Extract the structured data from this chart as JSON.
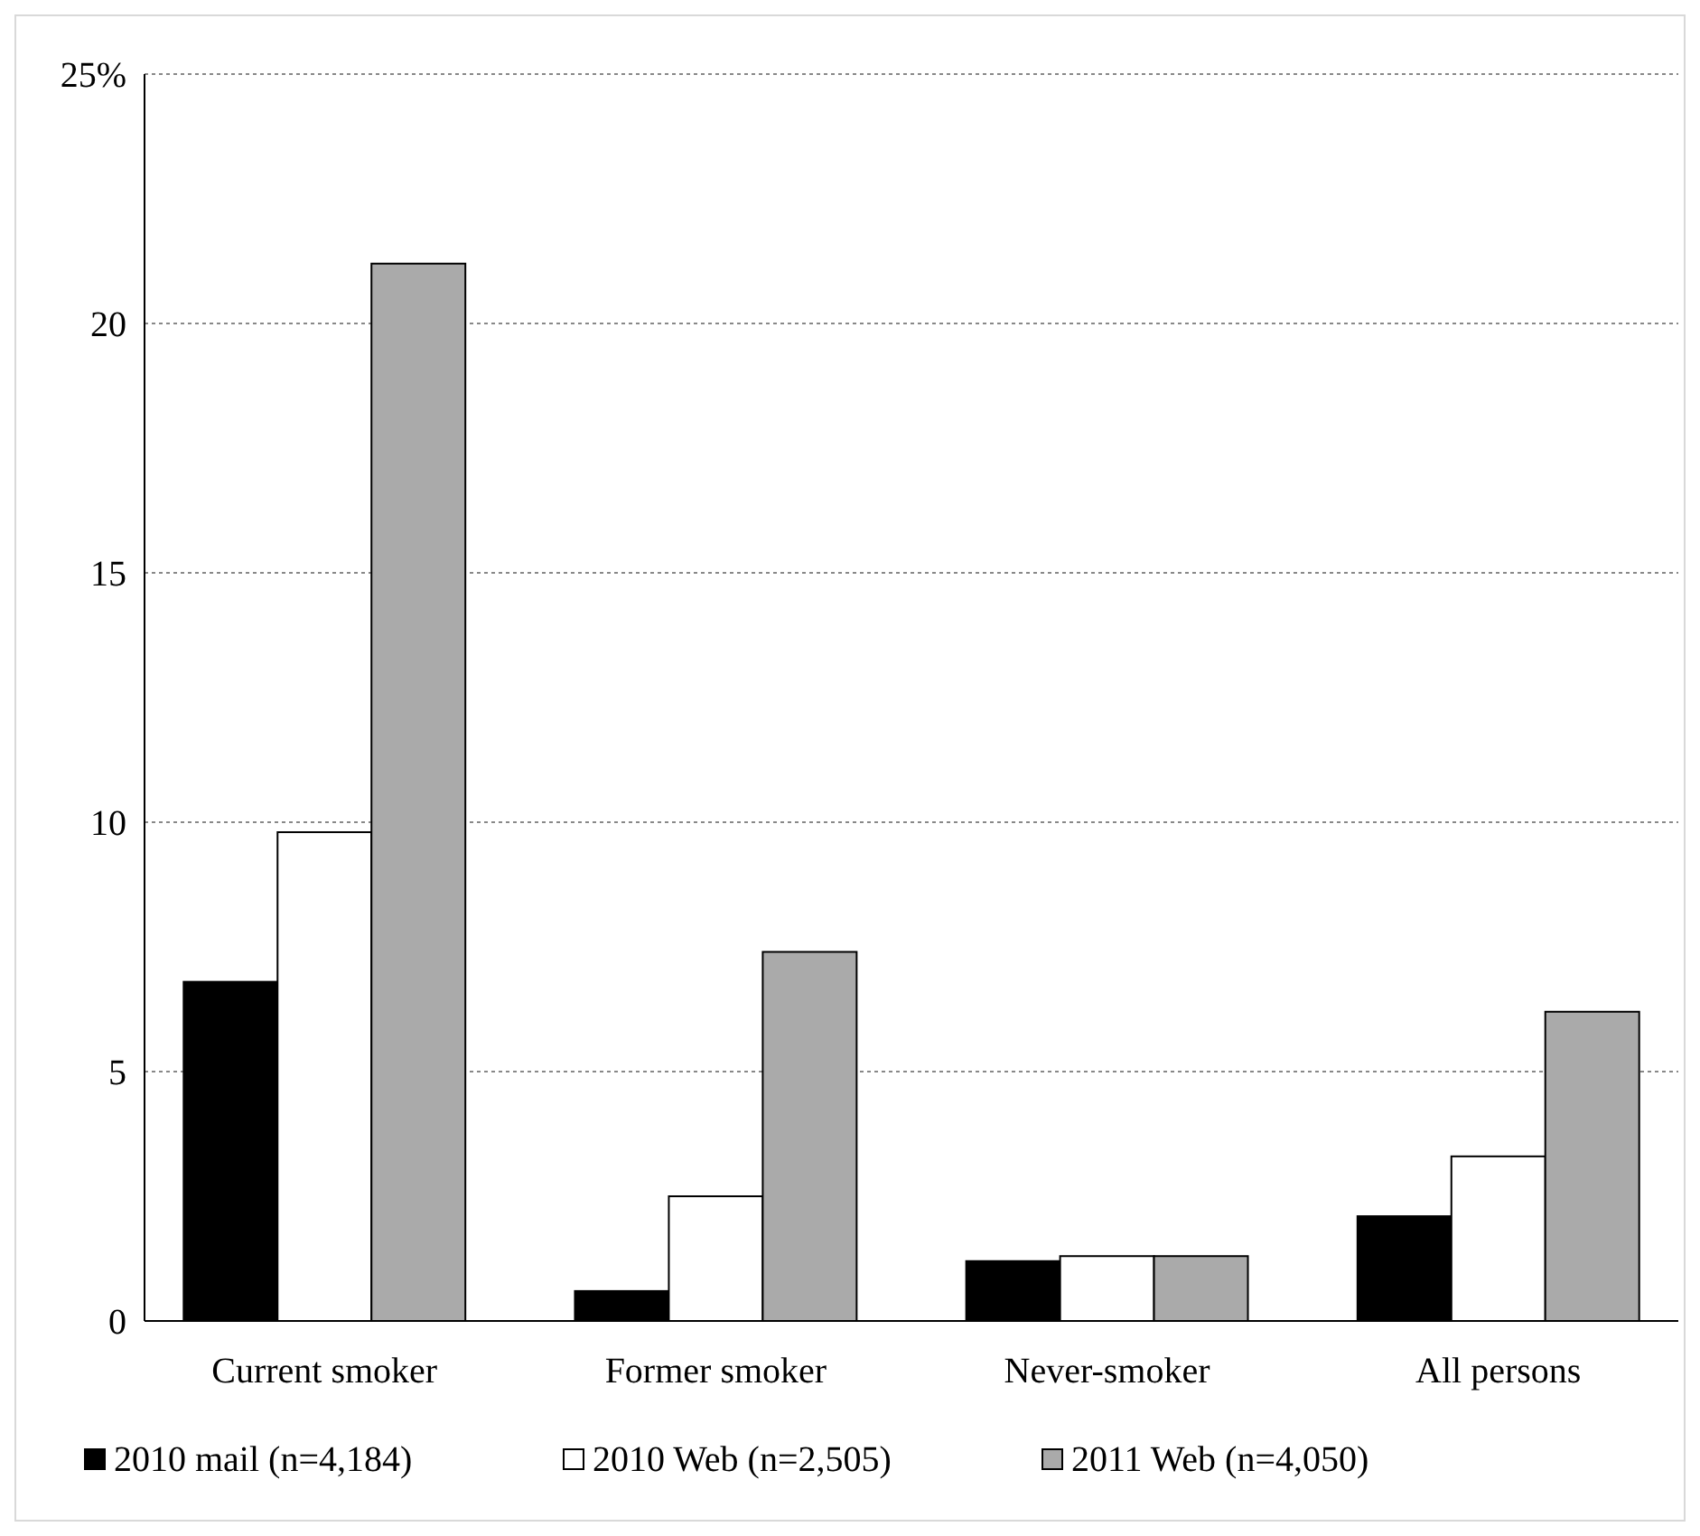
{
  "chart_data": {
    "type": "bar",
    "categories": [
      "Current smoker",
      "Former smoker",
      "Never-smoker",
      "All persons"
    ],
    "series": [
      {
        "name": "2010 mail (n=4,184)",
        "color": "#000000",
        "values": [
          6.8,
          0.6,
          1.2,
          2.1
        ]
      },
      {
        "name": "2010 Web (n=2,505)",
        "color": "#ffffff",
        "values": [
          9.8,
          2.5,
          1.3,
          3.3
        ]
      },
      {
        "name": "2011 Web (n=4,050)",
        "color": "#aaaaaa",
        "values": [
          21.2,
          7.4,
          1.3,
          6.2
        ]
      }
    ],
    "ylim": [
      0,
      25
    ],
    "yticks": [
      0,
      5,
      10,
      15,
      20,
      {
        "value": 25,
        "label": "25%"
      }
    ],
    "grid": "y",
    "legend": "bottom"
  }
}
